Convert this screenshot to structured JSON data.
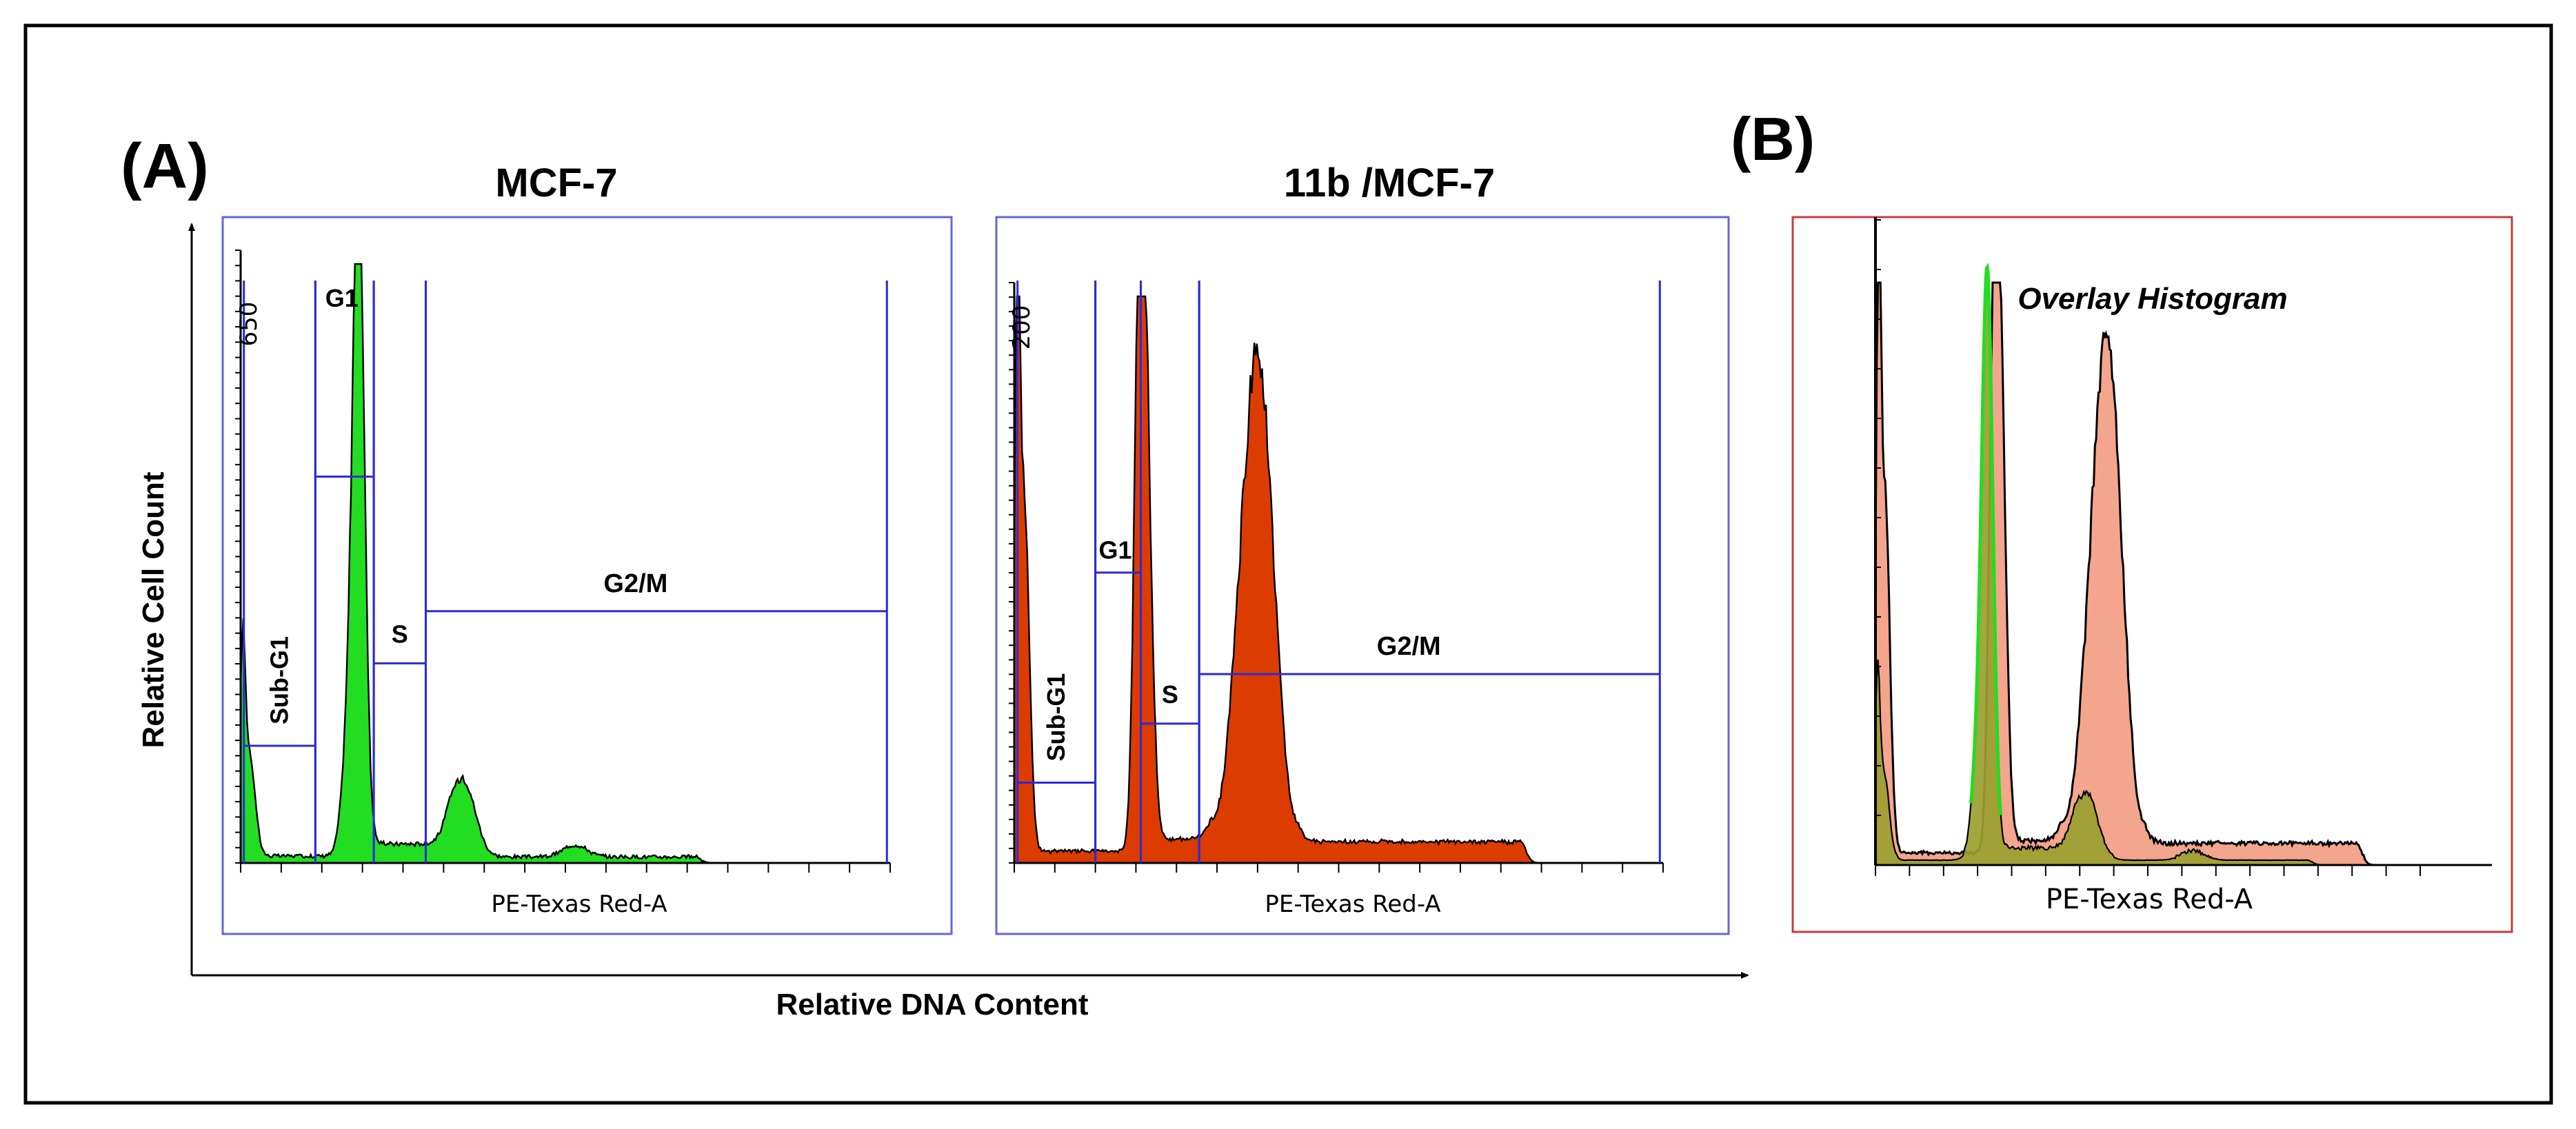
{
  "figure": {
    "panel_a_label": "(A)",
    "panel_b_label": "(B)",
    "y_axis_title": "Relative Cell Count",
    "x_axis_title": "Relative DNA Content"
  },
  "colors": {
    "frame": "#000000",
    "plot_border_a": "#6464e6",
    "plot_border_b": "#c83c3c",
    "gate": "#2b2bd8",
    "control_fill": "#22dd22",
    "treated_fill": "#dd3c00",
    "overlay_treated_fill": "#f4a58e",
    "overlay_control_fill": "#9aa030",
    "trace": "#000000"
  },
  "chart_data": [
    {
      "id": "mcf7",
      "type": "area",
      "title": "MCF-7",
      "xlabel": "PE-Texas Red-A",
      "ylabel": "",
      "ytick_label": "650",
      "ylim": [
        0,
        690
      ],
      "xlim": [
        0,
        100
      ],
      "fill_color": "#22dd22",
      "peaks": [
        {
          "x": 0.3,
          "y": 200,
          "sigma": 0.4
        },
        {
          "x": 1.3,
          "y": 120,
          "sigma": 0.9
        },
        {
          "x": 18.2,
          "y": 650,
          "sigma": 0.85
        },
        {
          "x": 17.3,
          "y": 210,
          "sigma": 1.3
        },
        {
          "x": 34.2,
          "y": 98,
          "sigma": 1.8
        },
        {
          "x": 51.5,
          "y": 14,
          "sigma": 1.8
        }
      ],
      "baseline": [
        {
          "from": 0,
          "to": 13,
          "y": 8
        },
        {
          "from": 20,
          "to": 32,
          "y": 22
        },
        {
          "from": 37,
          "to": 70,
          "y": 7
        }
      ],
      "gates": [
        {
          "label": "Sub-G1",
          "x0": 0.5,
          "x1": 11.5,
          "y": 135
        },
        {
          "label": "G1",
          "x0": 11.5,
          "x1": 20.5,
          "y": 445
        },
        {
          "label": "S",
          "x0": 20.5,
          "x1": 28.5,
          "y": 230
        },
        {
          "label": "G2/M",
          "x0": 28.5,
          "x1": 99.5,
          "y": 290
        }
      ]
    },
    {
      "id": "mcf7-11b",
      "type": "area",
      "title": "11b /MCF-7",
      "xlabel": "PE-Texas Red-A",
      "ylabel": "",
      "ytick_label": "200",
      "ylim": [
        0,
        240
      ],
      "xlim": [
        0,
        100
      ],
      "fill_color": "#dd3c00",
      "peaks": [
        {
          "x": 0.5,
          "y": 240,
          "sigma": 0.35
        },
        {
          "x": 1.5,
          "y": 150,
          "sigma": 0.8
        },
        {
          "x": 19.2,
          "y": 200,
          "sigma": 0.75
        },
        {
          "x": 20.3,
          "y": 170,
          "sigma": 0.9
        },
        {
          "x": 38.0,
          "y": 170,
          "sigma": 2.3
        },
        {
          "x": 35.5,
          "y": 70,
          "sigma": 2.5
        }
      ],
      "baseline": [
        {
          "from": 0,
          "to": 17,
          "y": 5
        },
        {
          "from": 21,
          "to": 30,
          "y": 10
        },
        {
          "from": 44,
          "to": 78,
          "y": 9
        }
      ],
      "gates": [
        {
          "label": "Sub-G1",
          "x0": 0.5,
          "x1": 12.5,
          "y": 34
        },
        {
          "label": "G1",
          "x0": 12.5,
          "x1": 19.5,
          "y": 123
        },
        {
          "label": "S",
          "x0": 19.5,
          "x1": 28.5,
          "y": 59
        },
        {
          "label": "G2/M",
          "x0": 28.5,
          "x1": 99.5,
          "y": 80
        }
      ]
    },
    {
      "id": "overlay",
      "type": "area",
      "title": "Overlay Histogram",
      "xlabel": "PE-Texas Red-A",
      "ylabel": "",
      "ylim": [
        0,
        240
      ],
      "xlim": [
        0,
        100
      ],
      "series": [
        {
          "name": "11b /MCF-7",
          "fill_color": "#f4a58e",
          "peaks": [
            {
              "x": 0.5,
              "y": 240,
              "sigma": 0.35
            },
            {
              "x": 1.5,
              "y": 150,
              "sigma": 0.8
            },
            {
              "x": 19.2,
              "y": 200,
              "sigma": 0.75
            },
            {
              "x": 20.3,
              "y": 170,
              "sigma": 0.9
            },
            {
              "x": 38.0,
              "y": 170,
              "sigma": 2.3
            },
            {
              "x": 35.5,
              "y": 70,
              "sigma": 2.5
            }
          ],
          "baseline": [
            {
              "from": 0,
              "to": 17,
              "y": 5
            },
            {
              "from": 21,
              "to": 30,
              "y": 10
            },
            {
              "from": 44,
              "to": 78,
              "y": 9
            }
          ]
        },
        {
          "name": "MCF-7",
          "fill_color": "#9aa030",
          "peaks": [
            {
              "x": 0.3,
              "y": 60,
              "sigma": 0.4
            },
            {
              "x": 1.3,
              "y": 36,
              "sigma": 0.9
            },
            {
              "x": 18.2,
              "y": 195,
              "sigma": 0.85
            },
            {
              "x": 17.3,
              "y": 63,
              "sigma": 1.3
            },
            {
              "x": 34.2,
              "y": 30,
              "sigma": 1.8
            },
            {
              "x": 51.5,
              "y": 4,
              "sigma": 1.8
            }
          ],
          "baseline": [
            {
              "from": 0,
              "to": 13,
              "y": 2
            },
            {
              "from": 20,
              "to": 32,
              "y": 7
            },
            {
              "from": 37,
              "to": 70,
              "y": 2
            }
          ]
        }
      ]
    }
  ]
}
